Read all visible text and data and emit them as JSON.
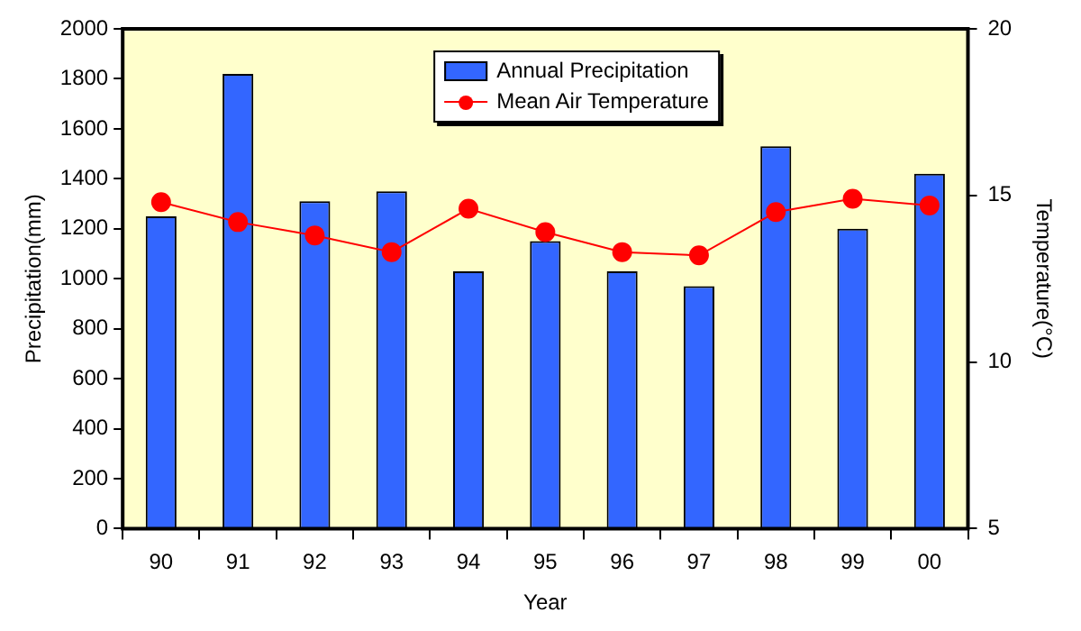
{
  "chart_data": {
    "type": "bar",
    "xlabel": "Year",
    "ylabel": "Precipitation(mm)",
    "y2label": "Temperature(°C)",
    "categories": [
      "90",
      "91",
      "92",
      "93",
      "94",
      "95",
      "96",
      "97",
      "98",
      "99",
      "00"
    ],
    "series": [
      {
        "name": "Annual Precipitation",
        "color": "#3366ff",
        "values": [
          1250,
          1820,
          1310,
          1350,
          1030,
          1150,
          1030,
          970,
          1530,
          1200,
          1420
        ]
      },
      {
        "name": "Mean Air Temperature",
        "type": "line",
        "axis": "y2",
        "color": "#ff0000",
        "marker": "circle",
        "values": [
          14.8,
          14.2,
          13.8,
          13.3,
          14.6,
          13.9,
          13.3,
          13.2,
          14.5,
          14.9,
          14.7
        ]
      }
    ],
    "ylim": [
      0,
      2000
    ],
    "yticks": [
      0,
      200,
      400,
      600,
      800,
      1000,
      1200,
      1400,
      1600,
      1800,
      2000
    ],
    "y2lim": [
      5,
      20
    ],
    "y2ticks": [
      5,
      10,
      15,
      20
    ],
    "grid": false,
    "legend": "top"
  }
}
